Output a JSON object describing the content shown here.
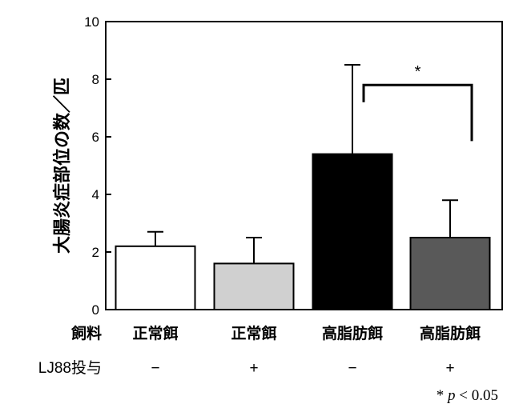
{
  "chart_data": {
    "type": "bar",
    "ylabel": "大腸炎症部位の数／匹",
    "ylim": [
      0,
      10
    ],
    "yticks": [
      0,
      2,
      4,
      6,
      8,
      10
    ],
    "grid": false,
    "row_labels": {
      "feed": "飼料",
      "treatment": "LJ88投与"
    },
    "categories": [
      {
        "feed": "正常餌",
        "treatment": "−"
      },
      {
        "feed": "正常餌",
        "treatment": "+"
      },
      {
        "feed": "高脂肪餌",
        "treatment": "−"
      },
      {
        "feed": "高脂肪餌",
        "treatment": "+"
      }
    ],
    "values": [
      2.2,
      1.6,
      5.4,
      2.5
    ],
    "error_upper": [
      2.7,
      2.5,
      8.5,
      3.8
    ],
    "colors": [
      "#ffffff",
      "#d0d0d0",
      "#000000",
      "#595959"
    ],
    "significance": {
      "between": [
        3,
        4
      ],
      "marker": "*"
    },
    "footnote": {
      "star": "*",
      "p": "p",
      "rest": " < 0.05"
    }
  }
}
